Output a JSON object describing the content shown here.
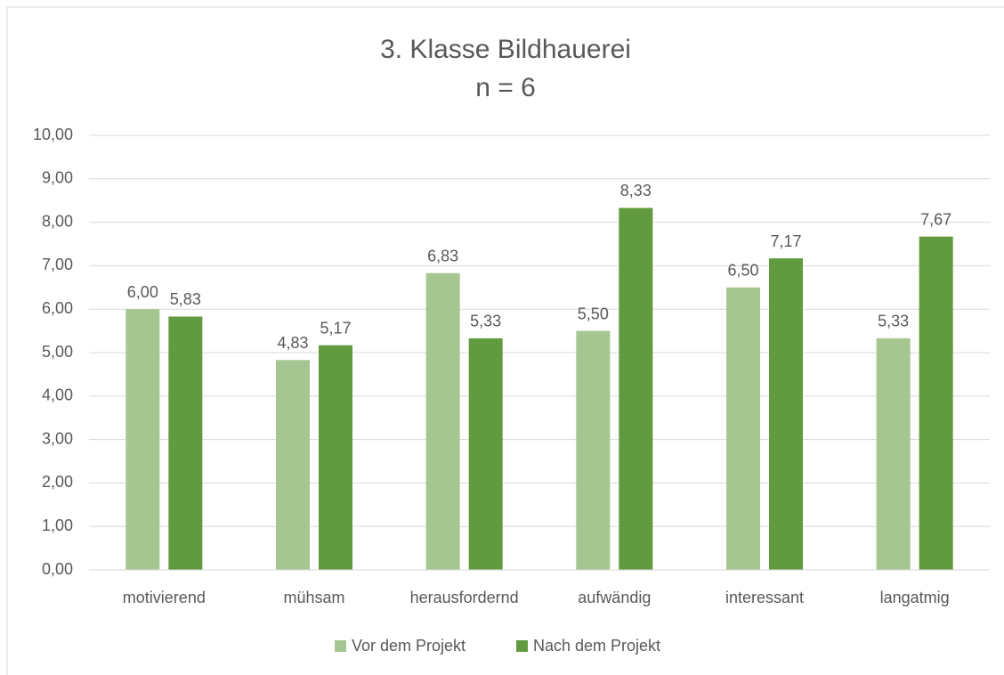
{
  "chart_data": {
    "type": "bar",
    "title": "3. Klasse Bildhauerei",
    "subtitle": "n = 6",
    "categories": [
      "motivierend",
      "mühsam",
      "herausfordernd",
      "aufwändig",
      "interessant",
      "langatmig"
    ],
    "series": [
      {
        "name": "Vor dem Projekt",
        "color": "#a5c690",
        "values": [
          6.0,
          4.83,
          6.83,
          5.5,
          6.5,
          5.33
        ],
        "value_labels": [
          "6,00",
          "4,83",
          "6,83",
          "5,50",
          "6,50",
          "5,33"
        ]
      },
      {
        "name": "Nach dem Projekt",
        "color": "#629b3f",
        "values": [
          5.83,
          5.17,
          5.33,
          8.33,
          7.17,
          7.67
        ],
        "value_labels": [
          "5,83",
          "5,17",
          "5,33",
          "8,33",
          "7,17",
          "7,67"
        ]
      }
    ],
    "ylim": [
      0,
      10
    ],
    "yticks": [
      {
        "value": 0,
        "label": "0,00"
      },
      {
        "value": 1,
        "label": "1,00"
      },
      {
        "value": 2,
        "label": "2,00"
      },
      {
        "value": 3,
        "label": "3,00"
      },
      {
        "value": 4,
        "label": "4,00"
      },
      {
        "value": 5,
        "label": "5,00"
      },
      {
        "value": 6,
        "label": "6,00"
      },
      {
        "value": 7,
        "label": "7,00"
      },
      {
        "value": 8,
        "label": "8,00"
      },
      {
        "value": 9,
        "label": "9,00"
      },
      {
        "value": 10,
        "label": "10,00"
      }
    ],
    "grid": true,
    "legend": "bottom"
  }
}
